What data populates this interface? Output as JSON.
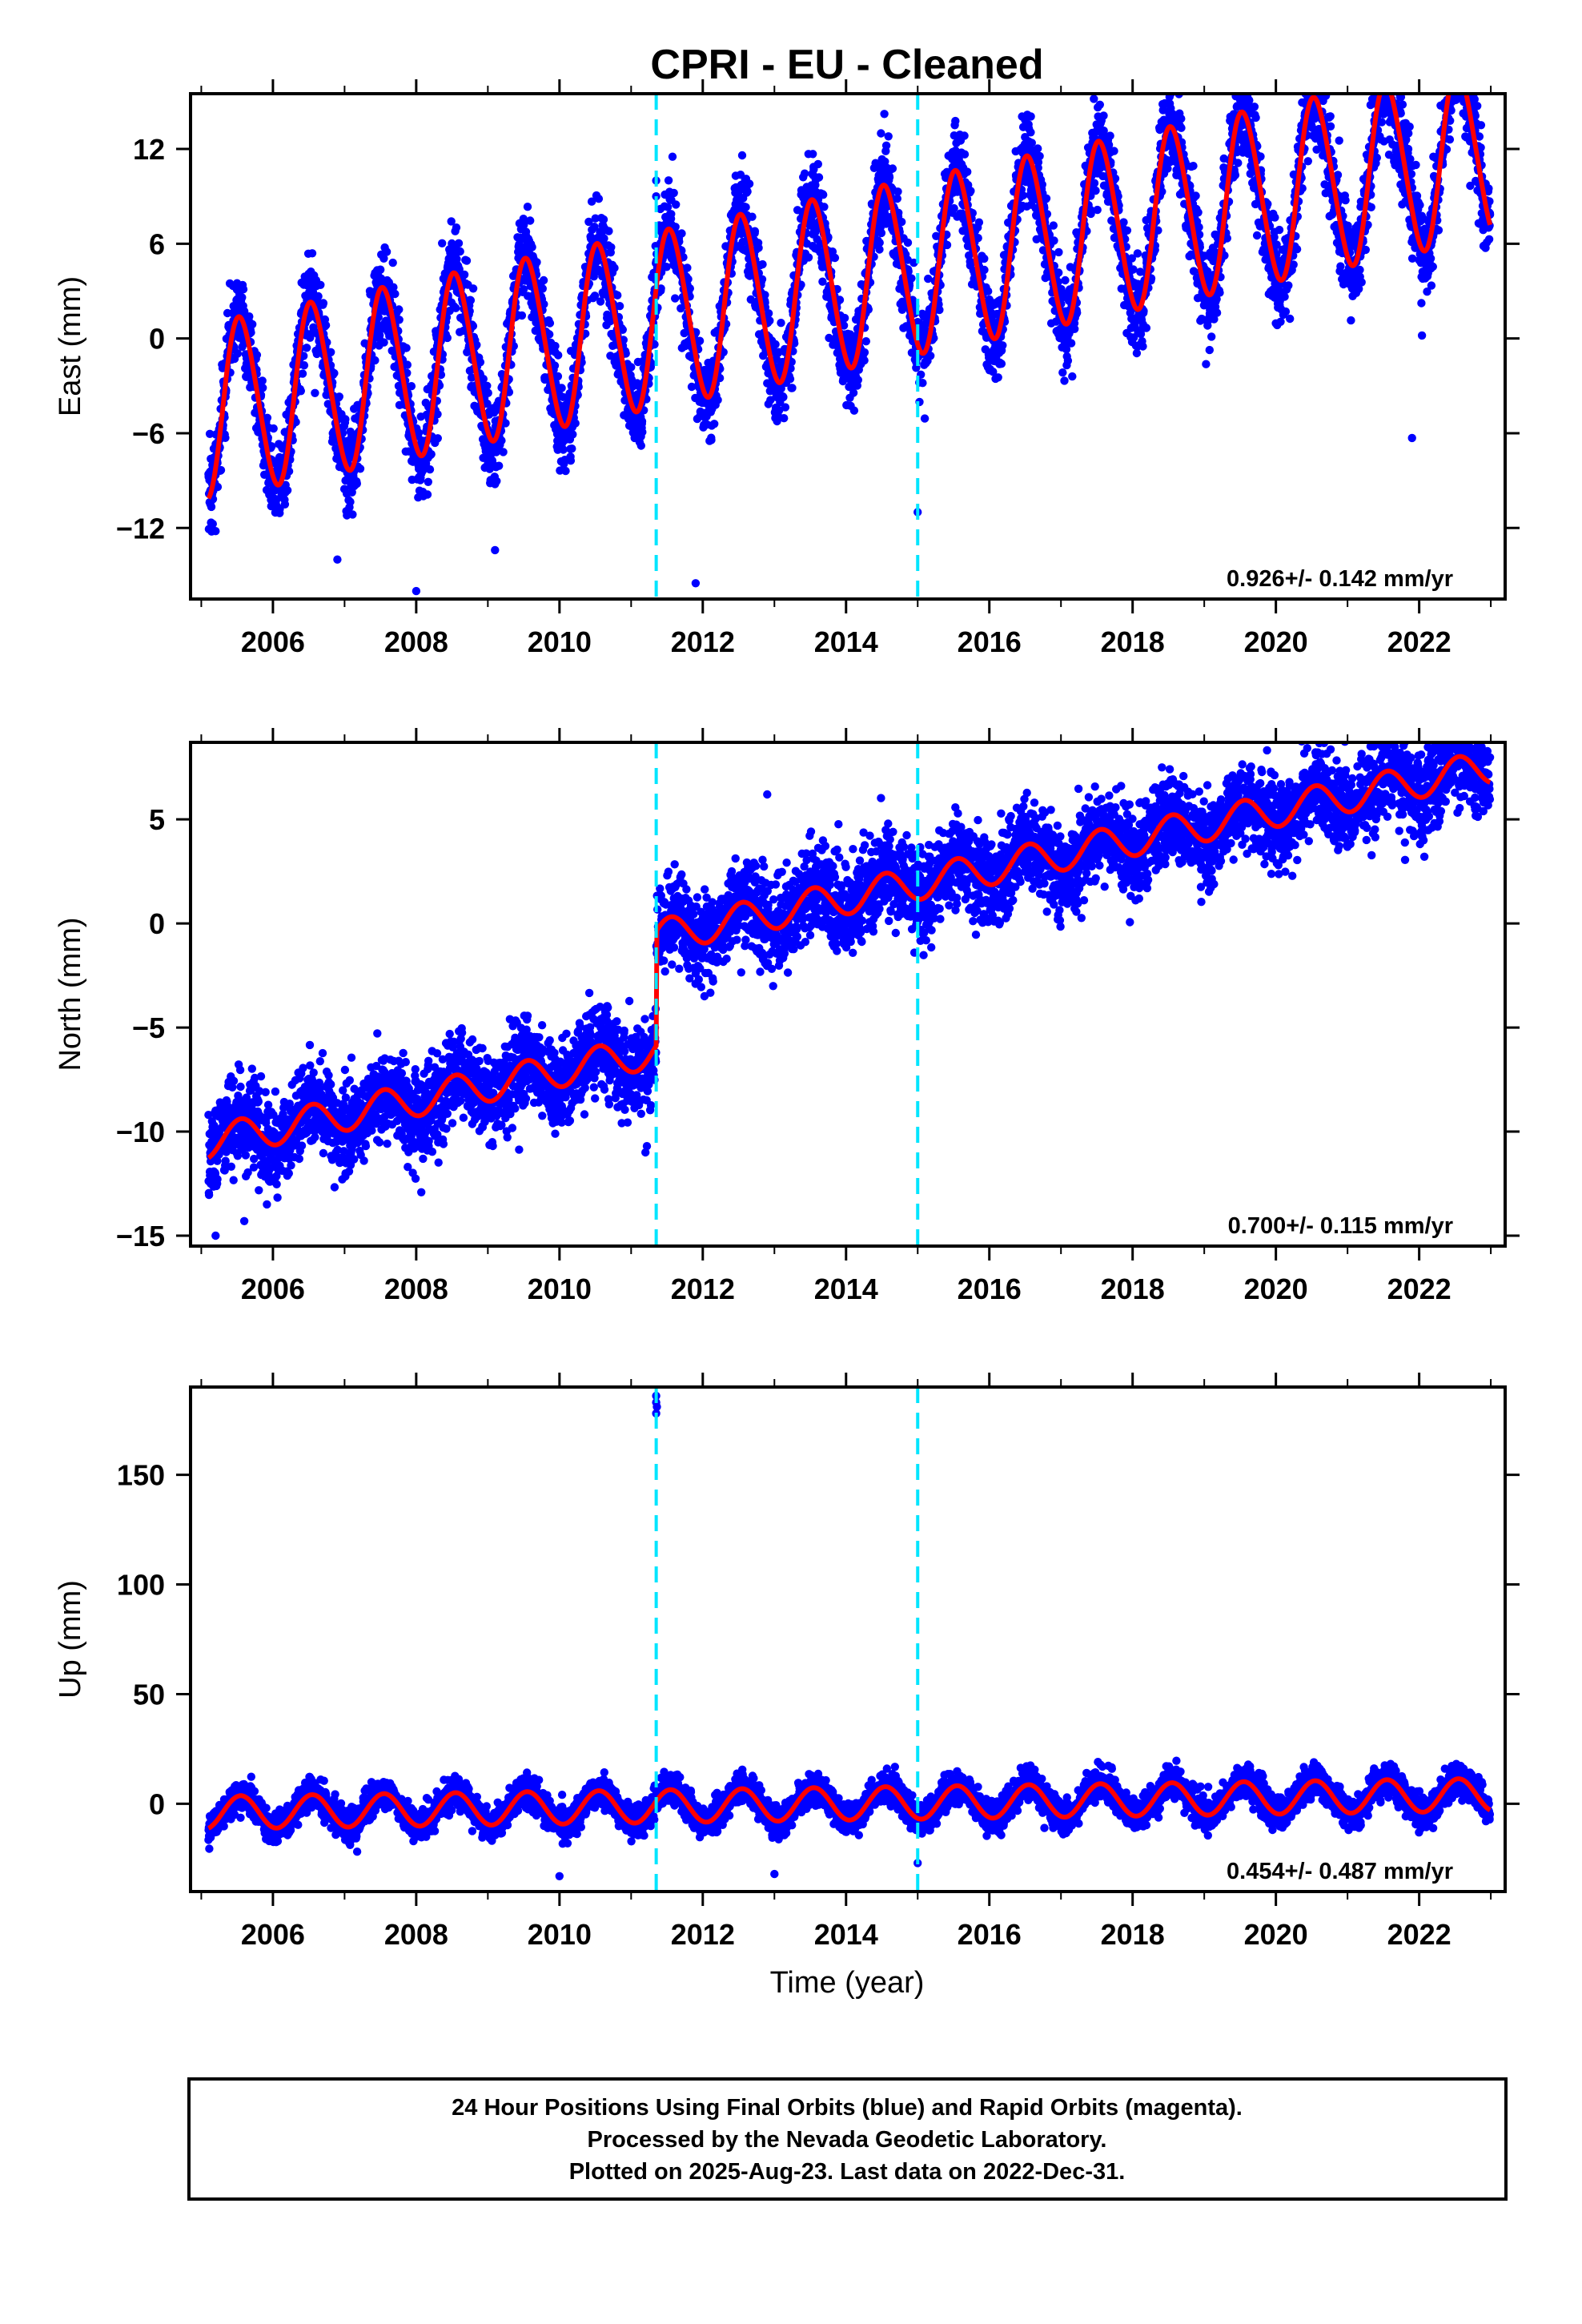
{
  "title": "CPRI  - EU - Cleaned",
  "xlabel": "Time (year)",
  "footer": {
    "lines": [
      "24 Hour Positions Using Final Orbits (blue) and Rapid Orbits (magenta).",
      "Processed by the Nevada Geodetic Laboratory.",
      "Plotted on 2025-Aug-23. Last data on 2022-Dec-31."
    ]
  },
  "colors": {
    "points": "#0000ff",
    "model": "#ff0000",
    "event_lines": "#00e5ff",
    "axes": "#000000"
  },
  "chart_data": [
    {
      "type": "scatter",
      "name": "east",
      "ylabel": "East (mm)",
      "rate_label": "0.926+/- 0.142 mm/yr",
      "xlim": [
        2004.85,
        2023.2
      ],
      "ylim": [
        -16.5,
        15.5
      ],
      "xticks": [
        2006,
        2008,
        2010,
        2012,
        2014,
        2016,
        2018,
        2020,
        2022
      ],
      "yticks": [
        -12,
        -6,
        0,
        6,
        12
      ],
      "event_lines": [
        2011.35,
        2015.0
      ],
      "data_range": [
        2005.1,
        2022.99
      ],
      "model": {
        "t0": 2005.1,
        "offset": -4.6,
        "rate": 0.926,
        "annual_amplitude": 5.5,
        "annual_phase": 0.3,
        "semiannual_amplitude": 0.5,
        "noise_sd": 1.4,
        "steps": []
      },
      "outliers": [
        [
          2011.35,
          10.0
        ],
        [
          2011.35,
          9.0
        ],
        [
          2008.0,
          -16.0
        ],
        [
          2006.9,
          -14.0
        ],
        [
          2011.9,
          -15.5
        ],
        [
          2015.0,
          -11.0
        ],
        [
          2021.9,
          -6.3
        ],
        [
          2005.2,
          -12.2
        ],
        [
          2009.1,
          -13.4
        ]
      ]
    },
    {
      "type": "scatter",
      "name": "north",
      "ylabel": "North (mm)",
      "rate_label": "0.700+/- 0.115 mm/yr",
      "xlim": [
        2004.85,
        2023.2
      ],
      "ylim": [
        -15.5,
        8.7
      ],
      "xticks": [
        2006,
        2008,
        2010,
        2012,
        2014,
        2016,
        2018,
        2020,
        2022
      ],
      "yticks": [
        -15,
        -10,
        -5,
        0,
        5
      ],
      "event_lines": [
        2011.35,
        2015.0
      ],
      "data_range": [
        2005.1,
        2022.99
      ],
      "model": {
        "t0": 2005.1,
        "offset": -10.5,
        "rate": 0.7,
        "annual_amplitude": 0.8,
        "annual_phase": 0.3,
        "semiannual_amplitude": 0,
        "noise_sd": 1.05,
        "steps": [
          [
            2011.35,
            5.5
          ]
        ]
      },
      "outliers": [
        [
          2012.9,
          6.2
        ],
        [
          2005.2,
          -15.0
        ],
        [
          2011.2,
          -11.0
        ],
        [
          2011.22,
          -10.7
        ],
        [
          2005.6,
          -14.3
        ]
      ]
    },
    {
      "type": "scatter",
      "name": "up",
      "ylabel": "Up (mm)",
      "rate_label": "0.454+/- 0.487 mm/yr",
      "xlim": [
        2004.85,
        2023.2
      ],
      "ylim": [
        -40,
        190
      ],
      "xticks": [
        2006,
        2008,
        2010,
        2012,
        2014,
        2016,
        2018,
        2020,
        2022
      ],
      "yticks": [
        0,
        50,
        100,
        150
      ],
      "event_lines": [
        2011.35,
        2015.0
      ],
      "data_range": [
        2005.1,
        2022.99
      ],
      "model": {
        "t0": 2005.1,
        "offset": -4.0,
        "rate": 0.454,
        "annual_amplitude": 7.5,
        "annual_phase": 0.3,
        "semiannual_amplitude": 0,
        "noise_sd": 3.5,
        "steps": []
      },
      "outliers": [
        [
          2011.35,
          186
        ],
        [
          2011.35,
          183
        ],
        [
          2011.36,
          181
        ],
        [
          2011.35,
          178
        ],
        [
          2013.0,
          -32
        ],
        [
          2010.0,
          -33
        ],
        [
          2015.0,
          -27
        ]
      ]
    }
  ]
}
